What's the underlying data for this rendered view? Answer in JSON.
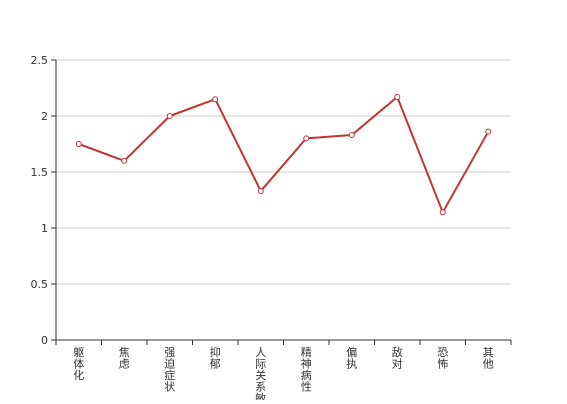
{
  "chart_data": {
    "type": "line",
    "title": "",
    "xlabel": "",
    "ylabel": "",
    "categories": [
      "躯体化",
      "焦虑",
      "强迫症状",
      "抑郁",
      "人际关系敏感",
      "精神病性",
      "偏执",
      "敌对",
      "恐怖",
      "其他"
    ],
    "series": [
      {
        "values": [
          1.75,
          1.6,
          2.0,
          2.15,
          1.33,
          1.8,
          1.83,
          2.17,
          1.14,
          1.86
        ]
      }
    ],
    "ylim": [
      0,
      2.5
    ],
    "yticks": [
      "0",
      "0.5",
      "1",
      "1.5",
      "2",
      "2.5"
    ],
    "grid": true,
    "legend": "none",
    "colors": {
      "line": "#c23531",
      "grid": "#cccccc",
      "axis": "#333333",
      "marker_fill": "#ffffff"
    }
  }
}
